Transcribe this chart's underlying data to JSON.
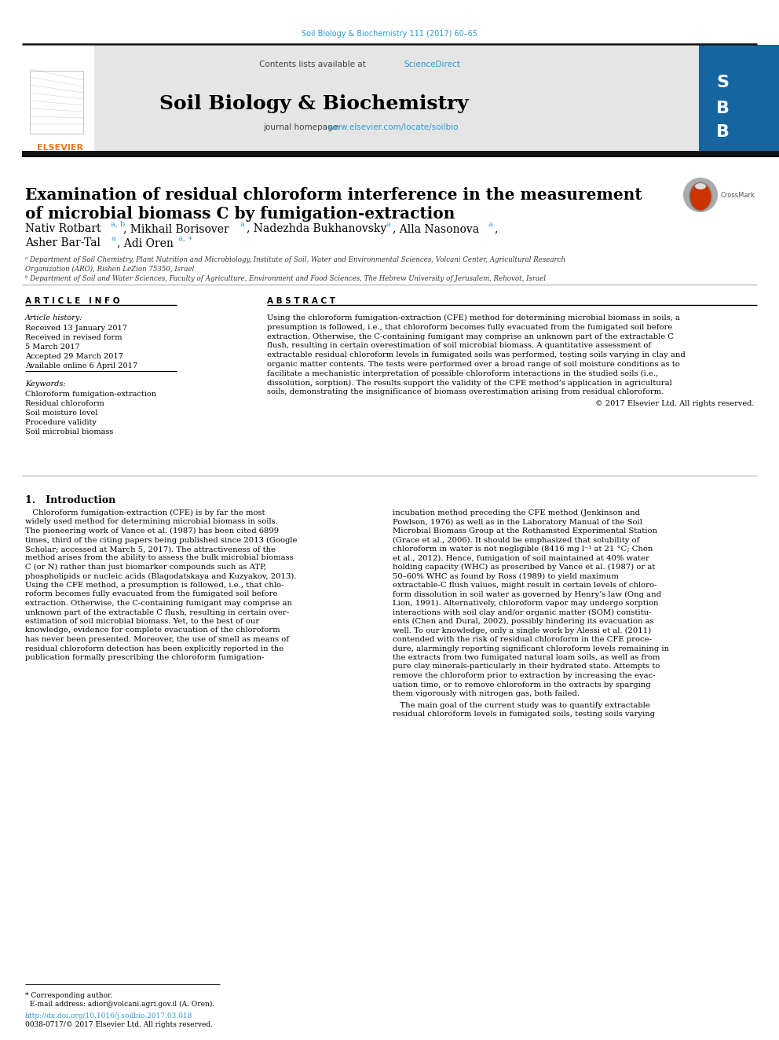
{
  "page_bg": "#ffffff",
  "top_citation": "Soil Biology & Biochemistry 111 (2017) 60–65",
  "top_citation_color": "#2a9bd4",
  "journal_name": "Soil Biology & Biochemistry",
  "contents_text": "Contents lists available at ",
  "science_direct": "ScienceDirect",
  "journal_homepage_text": "journal homepage: ",
  "journal_url": "www.elsevier.com/locate/soilbio",
  "link_color": "#2a9bd4",
  "header_bg": "#e8e8e8",
  "elsevier_color": "#e87722",
  "cover_bg": "#1a6fa0",
  "thick_bar_color": "#222222",
  "article_title_line1": "Examination of residual chloroform interference in the measurement",
  "article_title_line2": "of microbial biomass C by fumigation-extraction",
  "author_line1": "Nativ Rotbart",
  "author_sup1": "a, b",
  "author_line1b": ", Mikhail Borisover",
  "author_sup2": "a",
  "author_line1c": ", Nadezhda Bukhanovsky",
  "author_sup3": "a",
  "author_line1d": ", Alla Nasonova",
  "author_sup4": "a",
  "author_line1e": ",",
  "author_line2": "Asher Bar-Tal",
  "author_sup5": "a",
  "author_line2b": ", Adi Oren",
  "author_sup6": "a, ∗",
  "affil_a": "ᵃ Department of Soil Chemistry, Plant Nutrition and Microbiology, Institute of Soil, Water and Environmental Sciences, Volcani Center, Agricultural Research",
  "affil_a2": "Organization (ARO), Rishon LeZion 75350, Israel",
  "affil_b": "ᵇ Department of Soil and Water Sciences, Faculty of Agriculture, Environment and Food Sciences, The Hebrew University of Jerusalem, Rehovot, Israel",
  "article_info_title": "A R T I C L E   I N F O",
  "article_history_title": "Article history:",
  "received1": "Received 13 January 2017",
  "received2": "Received in revised form",
  "received3": "5 March 2017",
  "accepted": "Accepted 29 March 2017",
  "available": "Available online 6 April 2017",
  "keywords_title": "Keywords:",
  "keywords": [
    "Chloroform fumigation-extraction",
    "Residual chloroform",
    "Soil moisture level",
    "Procedure validity",
    "Soil microbial biomass"
  ],
  "abstract_title": "A B S T R A C T",
  "abstract_lines": [
    "Using the chloroform fumigation-extraction (CFE) method for determining microbial biomass in soils, a",
    "presumption is followed, i.e., that chloroform becomes fully evacuated from the fumigated soil before",
    "extraction. Otherwise, the C-containing fumigant may comprise an unknown part of the extractable C",
    "flush, resulting in certain overestimation of soil microbial biomass. A quantitative assessment of",
    "extractable residual chloroform levels in fumigated soils was performed, testing soils varying in clay and",
    "organic matter contents. The tests were performed over a broad range of soil moisture conditions as to",
    "facilitate a mechanistic interpretation of possible chloroform interactions in the studied soils (i.e.,",
    "dissolution, sorption). The results support the validity of the CFE method’s application in agricultural",
    "soils, demonstrating the insignificance of biomass overestimation arising from residual chloroform."
  ],
  "copyright": "© 2017 Elsevier Ltd. All rights reserved.",
  "intro_title": "1.   Introduction",
  "intro_left_lines": [
    "   Chloroform fumigation-extraction (CFE) is by far the most",
    "widely used method for determining microbial biomass in soils.",
    "The pioneering work of Vance et al. (1987) has been cited 6899",
    "times, third of the citing papers being published since 2013 (Google",
    "Scholar; accessed at March 5, 2017). The attractiveness of the",
    "method arises from the ability to assess the bulk microbial biomass",
    "C (or N) rather than just biomarker compounds such as ATP,",
    "phospholipids or nucleic acids (Blagodatskaya and Kuzyakov, 2013).",
    "Using the CFE method, a presumption is followed, i.e., that chlo-",
    "roform becomes fully evacuated from the fumigated soil before",
    "extraction. Otherwise, the C-containing fumigant may comprise an",
    "unknown part of the extractable C flush, resulting in certain over-",
    "estimation of soil microbial biomass. Yet, to the best of our",
    "knowledge, evidence for complete evacuation of the chloroform",
    "has never been presented. Moreover, the use of smell as means of",
    "residual chloroform detection has been explicitly reported in the",
    "publication formally prescribing the chloroform fumigation-"
  ],
  "intro_right_lines": [
    "incubation method preceding the CFE method (Jenkinson and",
    "Powlson, 1976) as well as in the Laboratory Manual of the Soil",
    "Microbial Biomass Group at the Rothamsted Experimental Station",
    "(Grace et al., 2006). It should be emphasized that solubility of",
    "chloroform in water is not negligible (8416 mg l⁻¹ at 21 °C; Chen",
    "et al., 2012). Hence, fumigation of soil maintained at 40% water",
    "holding capacity (WHC) as prescribed by Vance et al. (1987) or at",
    "50–60% WHC as found by Ross (1989) to yield maximum",
    "extractable-C flush values, might result in certain levels of chloro-",
    "form dissolution in soil water as governed by Henry’s law (Ong and",
    "Lion, 1991). Alternatively, chloroform vapor may undergo sorption",
    "interactions with soil clay and/or organic matter (SOM) constitu-",
    "ents (Chen and Dural, 2002), possibly hindering its evacuation as",
    "well. To our knowledge, only a single work by Alessi et al. (2011)",
    "contended with the risk of residual chloroform in the CFE proce-",
    "dure, alarmingly reporting significant chloroform levels remaining in",
    "the extracts from two fumigated natural loam soils, as well as from",
    "pure clay minerals-particularly in their hydrated state. Attempts to",
    "remove the chloroform prior to extraction by increasing the evac-",
    "uation time, or to remove chloroform in the extracts by sparging",
    "them vigorously with nitrogen gas, both failed."
  ],
  "intro_right_line2_1": "   The main goal of the current study was to quantify extractable",
  "intro_right_line2_2": "residual chloroform levels in fumigated soils, testing soils varying",
  "footer_star": "* Corresponding author.",
  "footer_email": "  E-mail address: adior@volcani.agri.gov.il (A. Oren).",
  "footer_doi": "http://dx.doi.org/10.1016/j.soilbio.2017.03.018",
  "footer_issn": "0038-0717/© 2017 Elsevier Ltd. All rights reserved."
}
